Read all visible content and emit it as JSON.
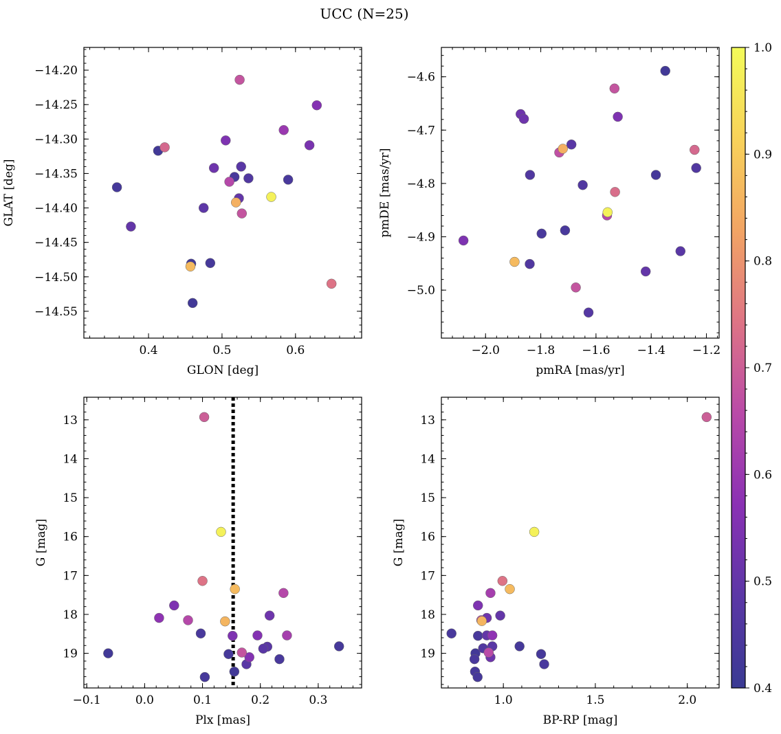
{
  "chart_data": {
    "title": "UCC (N=25)",
    "colorbar": {
      "min": 0.4,
      "max": 1.0,
      "ticks": [
        0.4,
        0.5,
        0.6,
        0.7,
        0.8,
        0.9,
        1.0
      ],
      "tick_labels": [
        "0.4",
        "0.5",
        "0.6",
        "0.7",
        "0.8",
        "0.9",
        "1.0"
      ],
      "colormap": "plasma",
      "cmap_stops": [
        "#3a3a93",
        "#5b37a6",
        "#8a31b4",
        "#b94aa8",
        "#de7485",
        "#f2a464",
        "#f8d25a",
        "#f3fb5a"
      ]
    },
    "panels": [
      {
        "id": "glon-glat",
        "type": "scatter",
        "xlabel": "GLON [deg]",
        "ylabel": "GLAT [deg]",
        "xlim": [
          0.312,
          0.69
        ],
        "ylim": [
          -14.589,
          -14.167
        ],
        "xticks": [
          0.4,
          0.5,
          0.6
        ],
        "xtick_labels": [
          "0.4",
          "0.5",
          "0.6"
        ],
        "yticks": [
          -14.2,
          -14.25,
          -14.3,
          -14.35,
          -14.4,
          -14.45,
          -14.5,
          -14.55
        ],
        "ytick_labels": [
          "−14.20",
          "−14.25",
          "−14.30",
          "−14.35",
          "−14.40",
          "−14.45",
          "−14.50",
          "−14.55"
        ],
        "points": [
          {
            "x": 0.524,
            "y": -14.214,
            "c": 0.68
          },
          {
            "x": 0.629,
            "y": -14.251,
            "c": 0.56
          },
          {
            "x": 0.584,
            "y": -14.287,
            "c": 0.6
          },
          {
            "x": 0.505,
            "y": -14.302,
            "c": 0.55
          },
          {
            "x": 0.619,
            "y": -14.309,
            "c": 0.54
          },
          {
            "x": 0.413,
            "y": -14.317,
            "c": 0.42
          },
          {
            "x": 0.422,
            "y": -14.312,
            "c": 0.72
          },
          {
            "x": 0.489,
            "y": -14.342,
            "c": 0.52
          },
          {
            "x": 0.526,
            "y": -14.34,
            "c": 0.48
          },
          {
            "x": 0.517,
            "y": -14.355,
            "c": 0.44
          },
          {
            "x": 0.536,
            "y": -14.357,
            "c": 0.46
          },
          {
            "x": 0.51,
            "y": -14.362,
            "c": 0.65
          },
          {
            "x": 0.59,
            "y": -14.359,
            "c": 0.44
          },
          {
            "x": 0.357,
            "y": -14.37,
            "c": 0.43
          },
          {
            "x": 0.567,
            "y": -14.384,
            "c": 0.98
          },
          {
            "x": 0.523,
            "y": -14.386,
            "c": 0.5
          },
          {
            "x": 0.519,
            "y": -14.392,
            "c": 0.85
          },
          {
            "x": 0.475,
            "y": -14.4,
            "c": 0.49
          },
          {
            "x": 0.527,
            "y": -14.408,
            "c": 0.68
          },
          {
            "x": 0.376,
            "y": -14.427,
            "c": 0.5
          },
          {
            "x": 0.458,
            "y": -14.481,
            "c": 0.42
          },
          {
            "x": 0.484,
            "y": -14.48,
            "c": 0.43
          },
          {
            "x": 0.457,
            "y": -14.485,
            "c": 0.87
          },
          {
            "x": 0.649,
            "y": -14.51,
            "c": 0.74
          },
          {
            "x": 0.46,
            "y": -14.538,
            "c": 0.42
          }
        ]
      },
      {
        "id": "pm",
        "type": "scatter",
        "xlabel": "pmRA [mas/yr]",
        "ylabel": "pmDE [mas/yr]",
        "xlim": [
          -2.16,
          -1.154
        ],
        "ylim": [
          -5.09,
          -4.545
        ],
        "xticks": [
          -2.0,
          -1.8,
          -1.6,
          -1.4,
          -1.2
        ],
        "xtick_labels": [
          "−2.0",
          "−1.8",
          "−1.6",
          "−1.4",
          "−1.2"
        ],
        "yticks": [
          -4.6,
          -4.7,
          -4.8,
          -4.9,
          -5.0
        ],
        "ytick_labels": [
          "−4.6",
          "−4.7",
          "−4.8",
          "−4.9",
          "−5.0"
        ],
        "points": [
          {
            "x": -1.349,
            "y": -4.589,
            "c": 0.42
          },
          {
            "x": -1.533,
            "y": -4.622,
            "c": 0.68
          },
          {
            "x": -1.873,
            "y": -4.67,
            "c": 0.52
          },
          {
            "x": -1.861,
            "y": -4.679,
            "c": 0.52
          },
          {
            "x": -1.521,
            "y": -4.675,
            "c": 0.55
          },
          {
            "x": -1.689,
            "y": -4.727,
            "c": 0.48
          },
          {
            "x": -1.733,
            "y": -4.742,
            "c": 0.67
          },
          {
            "x": -1.72,
            "y": -4.735,
            "c": 0.85
          },
          {
            "x": -1.243,
            "y": -4.737,
            "c": 0.72
          },
          {
            "x": -1.237,
            "y": -4.771,
            "c": 0.46
          },
          {
            "x": -1.839,
            "y": -4.784,
            "c": 0.46
          },
          {
            "x": -1.383,
            "y": -4.784,
            "c": 0.43
          },
          {
            "x": -1.648,
            "y": -4.803,
            "c": 0.46
          },
          {
            "x": -1.531,
            "y": -4.816,
            "c": 0.73
          },
          {
            "x": -1.558,
            "y": -4.854,
            "c": 0.98
          },
          {
            "x": -1.56,
            "y": -4.86,
            "c": 0.65
          },
          {
            "x": -1.712,
            "y": -4.888,
            "c": 0.44
          },
          {
            "x": -1.797,
            "y": -4.894,
            "c": 0.44
          },
          {
            "x": -2.08,
            "y": -4.907,
            "c": 0.55
          },
          {
            "x": -1.294,
            "y": -4.927,
            "c": 0.48
          },
          {
            "x": -1.895,
            "y": -4.947,
            "c": 0.87
          },
          {
            "x": -1.84,
            "y": -4.951,
            "c": 0.46
          },
          {
            "x": -1.42,
            "y": -4.965,
            "c": 0.5
          },
          {
            "x": -1.673,
            "y": -4.995,
            "c": 0.68
          },
          {
            "x": -1.627,
            "y": -5.042,
            "c": 0.47
          }
        ]
      },
      {
        "id": "plx-g",
        "type": "scatter",
        "xlabel": "Plx [mas]",
        "ylabel": "G [mag]",
        "xlim": [
          -0.105,
          0.375
        ],
        "ylim": [
          19.89,
          12.42
        ],
        "xticks": [
          -0.1,
          0.0,
          0.1,
          0.2,
          0.3
        ],
        "xtick_labels": [
          "−0.1",
          "0.0",
          "0.1",
          "0.2",
          "0.3"
        ],
        "yticks": [
          13,
          14,
          15,
          16,
          17,
          18,
          19
        ],
        "ytick_labels": [
          "13",
          "14",
          "15",
          "16",
          "17",
          "18",
          "19"
        ],
        "vline": {
          "x": 0.153,
          "style": "dotted"
        },
        "points": [
          {
            "x": 0.103,
            "y": 12.93,
            "c": 0.7
          },
          {
            "x": 0.132,
            "y": 15.88,
            "c": 0.98
          },
          {
            "x": 0.1,
            "y": 17.14,
            "c": 0.74
          },
          {
            "x": 0.156,
            "y": 17.35,
            "c": 0.87
          },
          {
            "x": 0.24,
            "y": 17.45,
            "c": 0.65
          },
          {
            "x": 0.051,
            "y": 17.77,
            "c": 0.55
          },
          {
            "x": 0.216,
            "y": 18.03,
            "c": 0.52
          },
          {
            "x": 0.025,
            "y": 18.09,
            "c": 0.58
          },
          {
            "x": 0.075,
            "y": 18.15,
            "c": 0.65
          },
          {
            "x": 0.139,
            "y": 18.18,
            "c": 0.86
          },
          {
            "x": 0.097,
            "y": 18.49,
            "c": 0.44
          },
          {
            "x": 0.152,
            "y": 18.55,
            "c": 0.55
          },
          {
            "x": 0.195,
            "y": 18.54,
            "c": 0.56
          },
          {
            "x": 0.246,
            "y": 18.54,
            "c": 0.62
          },
          {
            "x": 0.336,
            "y": 18.82,
            "c": 0.43
          },
          {
            "x": 0.212,
            "y": 18.83,
            "c": 0.48
          },
          {
            "x": 0.205,
            "y": 18.88,
            "c": 0.48
          },
          {
            "x": 0.168,
            "y": 18.98,
            "c": 0.68
          },
          {
            "x": -0.063,
            "y": 19.0,
            "c": 0.42
          },
          {
            "x": 0.145,
            "y": 19.02,
            "c": 0.43
          },
          {
            "x": 0.181,
            "y": 19.1,
            "c": 0.56
          },
          {
            "x": 0.233,
            "y": 19.15,
            "c": 0.44
          },
          {
            "x": 0.176,
            "y": 19.28,
            "c": 0.48
          },
          {
            "x": 0.155,
            "y": 19.47,
            "c": 0.42
          },
          {
            "x": 0.104,
            "y": 19.61,
            "c": 0.43
          }
        ]
      },
      {
        "id": "bprp-g",
        "type": "scatter",
        "xlabel": "BP-RP [mag]",
        "ylabel": "G [mag]",
        "xlim": [
          0.663,
          2.173
        ],
        "ylim": [
          19.89,
          12.42
        ],
        "xticks": [
          1.0,
          1.5,
          2.0
        ],
        "xtick_labels": [
          "1.0",
          "1.5",
          "2.0"
        ],
        "yticks": [
          13,
          14,
          15,
          16,
          17,
          18,
          19
        ],
        "ytick_labels": [
          "13",
          "14",
          "15",
          "16",
          "17",
          "18",
          "19"
        ],
        "points": [
          {
            "x": 2.105,
            "y": 12.93,
            "c": 0.7
          },
          {
            "x": 1.168,
            "y": 15.88,
            "c": 0.98
          },
          {
            "x": 0.995,
            "y": 17.14,
            "c": 0.74
          },
          {
            "x": 1.035,
            "y": 17.35,
            "c": 0.87
          },
          {
            "x": 0.93,
            "y": 17.45,
            "c": 0.62
          },
          {
            "x": 0.862,
            "y": 17.77,
            "c": 0.55
          },
          {
            "x": 0.983,
            "y": 18.03,
            "c": 0.5
          },
          {
            "x": 0.91,
            "y": 18.09,
            "c": 0.52
          },
          {
            "x": 0.88,
            "y": 18.15,
            "c": 0.65
          },
          {
            "x": 0.883,
            "y": 18.17,
            "c": 0.86
          },
          {
            "x": 0.718,
            "y": 18.49,
            "c": 0.44
          },
          {
            "x": 0.862,
            "y": 18.55,
            "c": 0.44
          },
          {
            "x": 0.91,
            "y": 18.54,
            "c": 0.5
          },
          {
            "x": 0.94,
            "y": 18.54,
            "c": 0.58
          },
          {
            "x": 1.088,
            "y": 18.82,
            "c": 0.43
          },
          {
            "x": 0.94,
            "y": 18.82,
            "c": 0.48
          },
          {
            "x": 0.89,
            "y": 18.87,
            "c": 0.46
          },
          {
            "x": 0.92,
            "y": 18.98,
            "c": 0.66
          },
          {
            "x": 0.848,
            "y": 19.0,
            "c": 0.42
          },
          {
            "x": 1.205,
            "y": 19.02,
            "c": 0.43
          },
          {
            "x": 0.93,
            "y": 19.1,
            "c": 0.52
          },
          {
            "x": 0.843,
            "y": 19.15,
            "c": 0.44
          },
          {
            "x": 1.222,
            "y": 19.28,
            "c": 0.44
          },
          {
            "x": 0.846,
            "y": 19.47,
            "c": 0.43
          },
          {
            "x": 0.86,
            "y": 19.61,
            "c": 0.43
          }
        ]
      }
    ]
  }
}
